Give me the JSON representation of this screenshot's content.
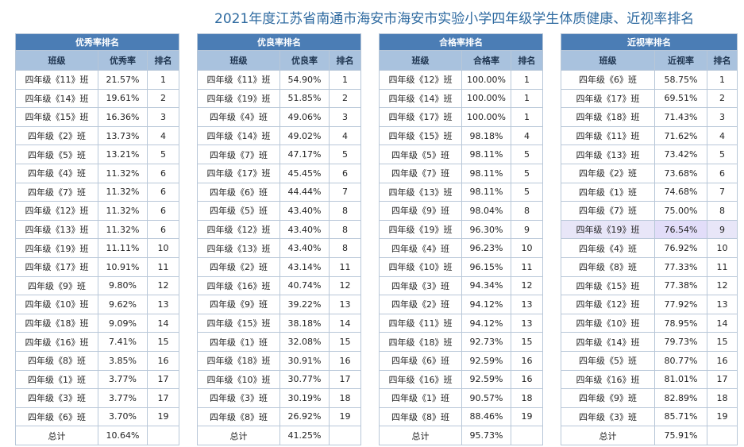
{
  "title": "2021年度江苏省南通市海安市海安市实验小学四年级学生体质健康、近视率排名",
  "tables": [
    {
      "caption": "优秀率排名",
      "headers": [
        "班级",
        "优秀率",
        "排名"
      ],
      "rows": [
        [
          "四年级《11》班",
          "21.57%",
          "1"
        ],
        [
          "四年级《14》班",
          "19.61%",
          "2"
        ],
        [
          "四年级《15》班",
          "16.36%",
          "3"
        ],
        [
          "四年级《2》班",
          "13.73%",
          "4"
        ],
        [
          "四年级《5》班",
          "13.21%",
          "5"
        ],
        [
          "四年级《4》班",
          "11.32%",
          "6"
        ],
        [
          "四年级《7》班",
          "11.32%",
          "6"
        ],
        [
          "四年级《12》班",
          "11.32%",
          "6"
        ],
        [
          "四年级《13》班",
          "11.32%",
          "6"
        ],
        [
          "四年级《19》班",
          "11.11%",
          "10"
        ],
        [
          "四年级《17》班",
          "10.91%",
          "11"
        ],
        [
          "四年级《9》班",
          "9.80%",
          "12"
        ],
        [
          "四年级《10》班",
          "9.62%",
          "13"
        ],
        [
          "四年级《18》班",
          "9.09%",
          "14"
        ],
        [
          "四年级《16》班",
          "7.41%",
          "15"
        ],
        [
          "四年级《8》班",
          "3.85%",
          "16"
        ],
        [
          "四年级《1》班",
          "3.77%",
          "17"
        ],
        [
          "四年级《3》班",
          "3.77%",
          "17"
        ],
        [
          "四年级《6》班",
          "3.70%",
          "19"
        ]
      ],
      "total": [
        "总计",
        "10.64%",
        ""
      ]
    },
    {
      "caption": "优良率排名",
      "headers": [
        "班级",
        "优良率",
        "排名"
      ],
      "rows": [
        [
          "四年级《11》班",
          "54.90%",
          "1"
        ],
        [
          "四年级《19》班",
          "51.85%",
          "2"
        ],
        [
          "四年级《4》班",
          "49.06%",
          "3"
        ],
        [
          "四年级《14》班",
          "49.02%",
          "4"
        ],
        [
          "四年级《7》班",
          "47.17%",
          "5"
        ],
        [
          "四年级《17》班",
          "45.45%",
          "6"
        ],
        [
          "四年级《6》班",
          "44.44%",
          "7"
        ],
        [
          "四年级《5》班",
          "43.40%",
          "8"
        ],
        [
          "四年级《12》班",
          "43.40%",
          "8"
        ],
        [
          "四年级《13》班",
          "43.40%",
          "8"
        ],
        [
          "四年级《2》班",
          "43.14%",
          "11"
        ],
        [
          "四年级《16》班",
          "40.74%",
          "12"
        ],
        [
          "四年级《9》班",
          "39.22%",
          "13"
        ],
        [
          "四年级《15》班",
          "38.18%",
          "14"
        ],
        [
          "四年级《1》班",
          "32.08%",
          "15"
        ],
        [
          "四年级《18》班",
          "30.91%",
          "16"
        ],
        [
          "四年级《10》班",
          "30.77%",
          "17"
        ],
        [
          "四年级《3》班",
          "30.19%",
          "18"
        ],
        [
          "四年级《8》班",
          "26.92%",
          "19"
        ]
      ],
      "total": [
        "总计",
        "41.25%",
        ""
      ]
    },
    {
      "caption": "合格率排名",
      "headers": [
        "班级",
        "合格率",
        "排名"
      ],
      "rows": [
        [
          "四年级《12》班",
          "100.00%",
          "1"
        ],
        [
          "四年级《14》班",
          "100.00%",
          "1"
        ],
        [
          "四年级《17》班",
          "100.00%",
          "1"
        ],
        [
          "四年级《15》班",
          "98.18%",
          "4"
        ],
        [
          "四年级《5》班",
          "98.11%",
          "5"
        ],
        [
          "四年级《7》班",
          "98.11%",
          "5"
        ],
        [
          "四年级《13》班",
          "98.11%",
          "5"
        ],
        [
          "四年级《9》班",
          "98.04%",
          "8"
        ],
        [
          "四年级《19》班",
          "96.30%",
          "9"
        ],
        [
          "四年级《4》班",
          "96.23%",
          "10"
        ],
        [
          "四年级《10》班",
          "96.15%",
          "11"
        ],
        [
          "四年级《3》班",
          "94.34%",
          "12"
        ],
        [
          "四年级《2》班",
          "94.12%",
          "13"
        ],
        [
          "四年级《11》班",
          "94.12%",
          "13"
        ],
        [
          "四年级《18》班",
          "92.73%",
          "15"
        ],
        [
          "四年级《6》班",
          "92.59%",
          "16"
        ],
        [
          "四年级《16》班",
          "92.59%",
          "16"
        ],
        [
          "四年级《1》班",
          "90.57%",
          "18"
        ],
        [
          "四年级《8》班",
          "88.46%",
          "19"
        ]
      ],
      "total": [
        "总计",
        "95.73%",
        ""
      ]
    },
    {
      "caption": "近视率排名",
      "headers": [
        "班级",
        "近视率",
        "排名"
      ],
      "rows": [
        [
          "四年级《6》班",
          "58.75%",
          "1"
        ],
        [
          "四年级《17》班",
          "69.51%",
          "2"
        ],
        [
          "四年级《18》班",
          "71.43%",
          "3"
        ],
        [
          "四年级《11》班",
          "71.62%",
          "4"
        ],
        [
          "四年级《13》班",
          "73.42%",
          "5"
        ],
        [
          "四年级《2》班",
          "73.68%",
          "6"
        ],
        [
          "四年级《1》班",
          "74.68%",
          "7"
        ],
        [
          "四年级《7》班",
          "75.00%",
          "8"
        ],
        [
          "四年级《19》班",
          "76.54%",
          "9"
        ],
        [
          "四年级《4》班",
          "76.92%",
          "10"
        ],
        [
          "四年级《8》班",
          "77.33%",
          "11"
        ],
        [
          "四年级《15》班",
          "77.38%",
          "12"
        ],
        [
          "四年级《12》班",
          "77.92%",
          "13"
        ],
        [
          "四年级《10》班",
          "78.95%",
          "14"
        ],
        [
          "四年级《14》班",
          "79.73%",
          "15"
        ],
        [
          "四年级《5》班",
          "80.77%",
          "16"
        ],
        [
          "四年级《16》班",
          "81.01%",
          "17"
        ],
        [
          "四年级《9》班",
          "82.89%",
          "18"
        ],
        [
          "四年级《3》班",
          "85.71%",
          "19"
        ]
      ],
      "total": [
        "总计",
        "75.91%",
        ""
      ],
      "highlight_row": 8
    }
  ]
}
